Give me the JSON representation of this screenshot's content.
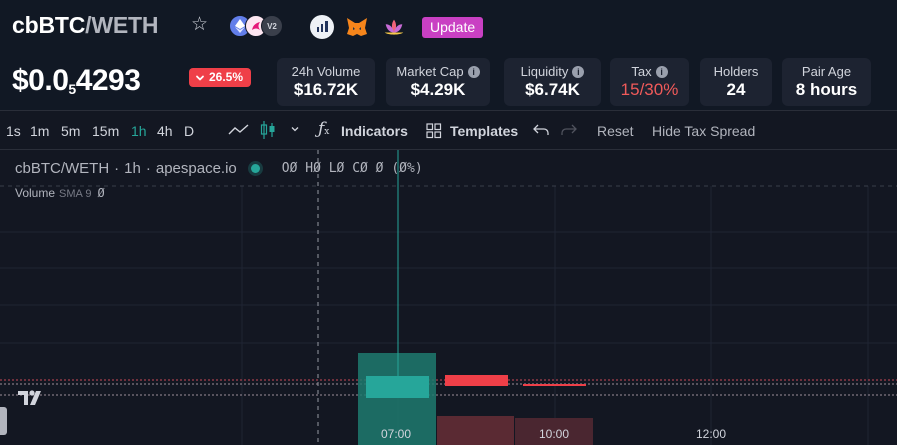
{
  "header": {
    "pair_base": "cbBTC",
    "pair_sep": "/",
    "pair_quote": "WETH",
    "dex_version": "V2",
    "icons": [
      "star-icon",
      "ethereum-icon",
      "uniswap-icon",
      "v2-badge",
      "etherscan-icon",
      "metamask-icon",
      "lotus-icon"
    ],
    "update_label": "Update",
    "price_prefix": "$0.0",
    "price_subscript": "5",
    "price_digits": "4293",
    "change": "26.5%",
    "change_direction": "down",
    "colors": {
      "accent_update": "#c940c3",
      "negative": "#ef3f48",
      "positive": "#26a69a"
    }
  },
  "stats": [
    {
      "label": "24h Volume",
      "value": "$16.72K",
      "info": false
    },
    {
      "label": "Market Cap",
      "value": "$4.29K",
      "info": true
    },
    {
      "label": "Liquidity",
      "value": "$6.74K",
      "info": true
    },
    {
      "label": "Tax",
      "value": "15/30%",
      "info": true
    },
    {
      "label": "Holders",
      "value": "24",
      "info": false
    },
    {
      "label": "Pair Age",
      "value": "8 hours",
      "info": false
    }
  ],
  "toolbar": {
    "intervals": [
      "1s",
      "1m",
      "5m",
      "15m",
      "1h",
      "4h",
      "D"
    ],
    "active_interval": "1h",
    "indicators_label": "Indicators",
    "templates_label": "Templates",
    "reset_label": "Reset",
    "hide_tax_label": "Hide Tax Spread"
  },
  "legend": {
    "symbol": "cbBTC/WETH",
    "interval": "1h",
    "source": "apespace.io",
    "ohlc": "OØ HØ LØ CØ Ø (Ø%)",
    "volume_label": "Volume",
    "volume_indicator": "SMA 9",
    "volume_value": "Ø"
  },
  "chart_data": {
    "type": "candlestick",
    "x_ticks": [
      "07:00",
      "10:00",
      "12:00"
    ],
    "candles": [
      {
        "time": "07:00",
        "direction": "up",
        "volume_direction": "up"
      },
      {
        "time": "08:00",
        "direction": "down",
        "volume_direction": "down"
      },
      {
        "time": "09:00",
        "direction": "down",
        "volume_direction": "down"
      }
    ],
    "grid": true
  }
}
